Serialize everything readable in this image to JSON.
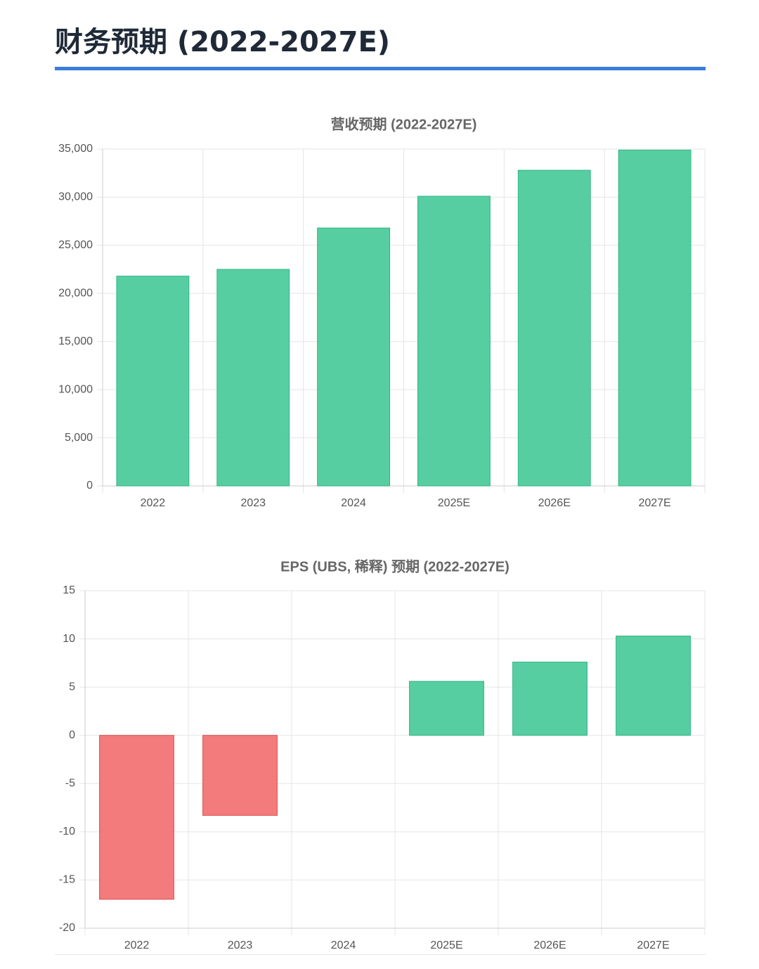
{
  "page": {
    "title": "财务预期 (2022-2027E)"
  },
  "colors": {
    "accent": "#3b7ddd",
    "positive_fill": "#4ecb9c",
    "positive_stroke": "#2fb585",
    "negative_fill": "#f27474",
    "negative_stroke": "#d94f4f"
  },
  "chart_data": [
    {
      "type": "bar",
      "title": "营收预期 (2022-2027E)",
      "categories": [
        "2022",
        "2023",
        "2024",
        "2025E",
        "2026E",
        "2027E"
      ],
      "values": [
        21800,
        22500,
        26800,
        30100,
        32800,
        34900
      ],
      "ylim": [
        0,
        35000
      ],
      "yticks": [
        0,
        5000,
        10000,
        15000,
        20000,
        25000,
        30000,
        35000
      ],
      "ytick_labels": [
        "0",
        "5,000",
        "10,000",
        "15,000",
        "20,000",
        "25,000",
        "30,000",
        "35,000"
      ],
      "xlabel": "",
      "ylabel": "",
      "grid": true
    },
    {
      "type": "bar",
      "title": "EPS (UBS, 稀释) 预期 (2022-2027E)",
      "categories": [
        "2022",
        "2023",
        "2024",
        "2025E",
        "2026E",
        "2027E"
      ],
      "values": [
        -17,
        -8.3,
        0,
        5.6,
        7.6,
        10.3
      ],
      "ylim": [
        -20,
        15
      ],
      "yticks": [
        -20,
        -15,
        -10,
        -5,
        0,
        5,
        10,
        15
      ],
      "ytick_labels": [
        "-20",
        "-15",
        "-10",
        "-5",
        "0",
        "5",
        "10",
        "15"
      ],
      "xlabel": "",
      "ylabel": "",
      "grid": true
    }
  ]
}
